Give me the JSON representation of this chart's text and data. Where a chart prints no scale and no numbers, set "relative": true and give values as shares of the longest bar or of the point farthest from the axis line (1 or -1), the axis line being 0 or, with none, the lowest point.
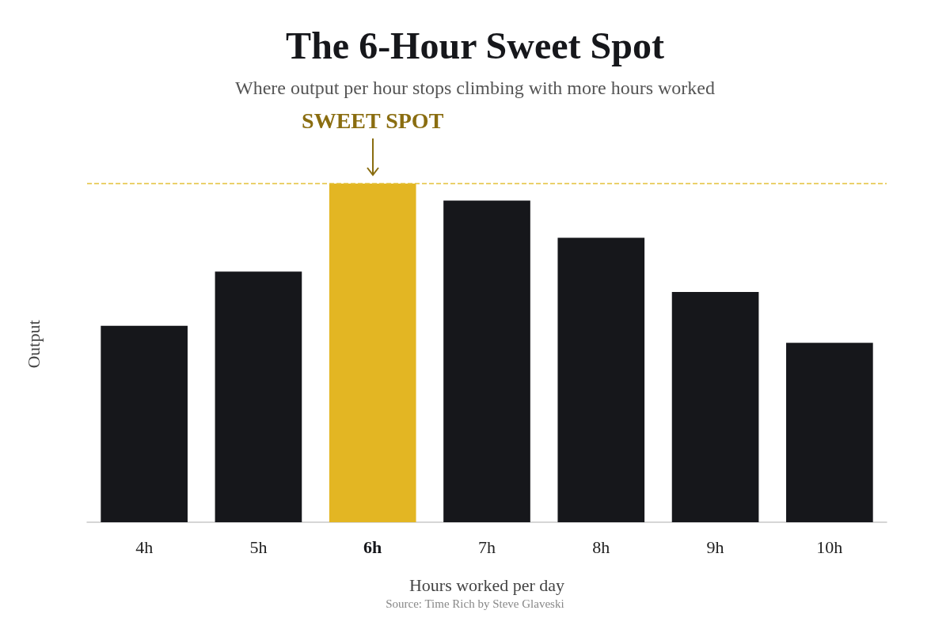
{
  "chart_data": {
    "type": "bar",
    "title": "The 6-Hour Sweet Spot",
    "subtitle": "Where output per hour stops climbing with more hours worked",
    "xlabel": "Hours worked per day",
    "ylabel": "Output",
    "relative": true,
    "categories": [
      "4h",
      "5h",
      "6h",
      "7h",
      "8h",
      "9h",
      "10h"
    ],
    "values": [
      0.58,
      0.74,
      1,
      0.95,
      0.84,
      0.68,
      0.53
    ],
    "colors": [
      "#16171b",
      "#16171b",
      "#e3b623",
      "#16171b",
      "#16171b",
      "#16171b",
      "#16171b"
    ],
    "ref_lines": [
      {
        "axis": "y",
        "value": 1,
        "color": "#e3c13a",
        "line_style": "dashed"
      }
    ],
    "annotations": [
      {
        "text": "SWEET SPOT",
        "x": "6h",
        "y": 1
      },
      "Source: Time Rich by Steve Glaveski"
    ],
    "grid": false
  }
}
